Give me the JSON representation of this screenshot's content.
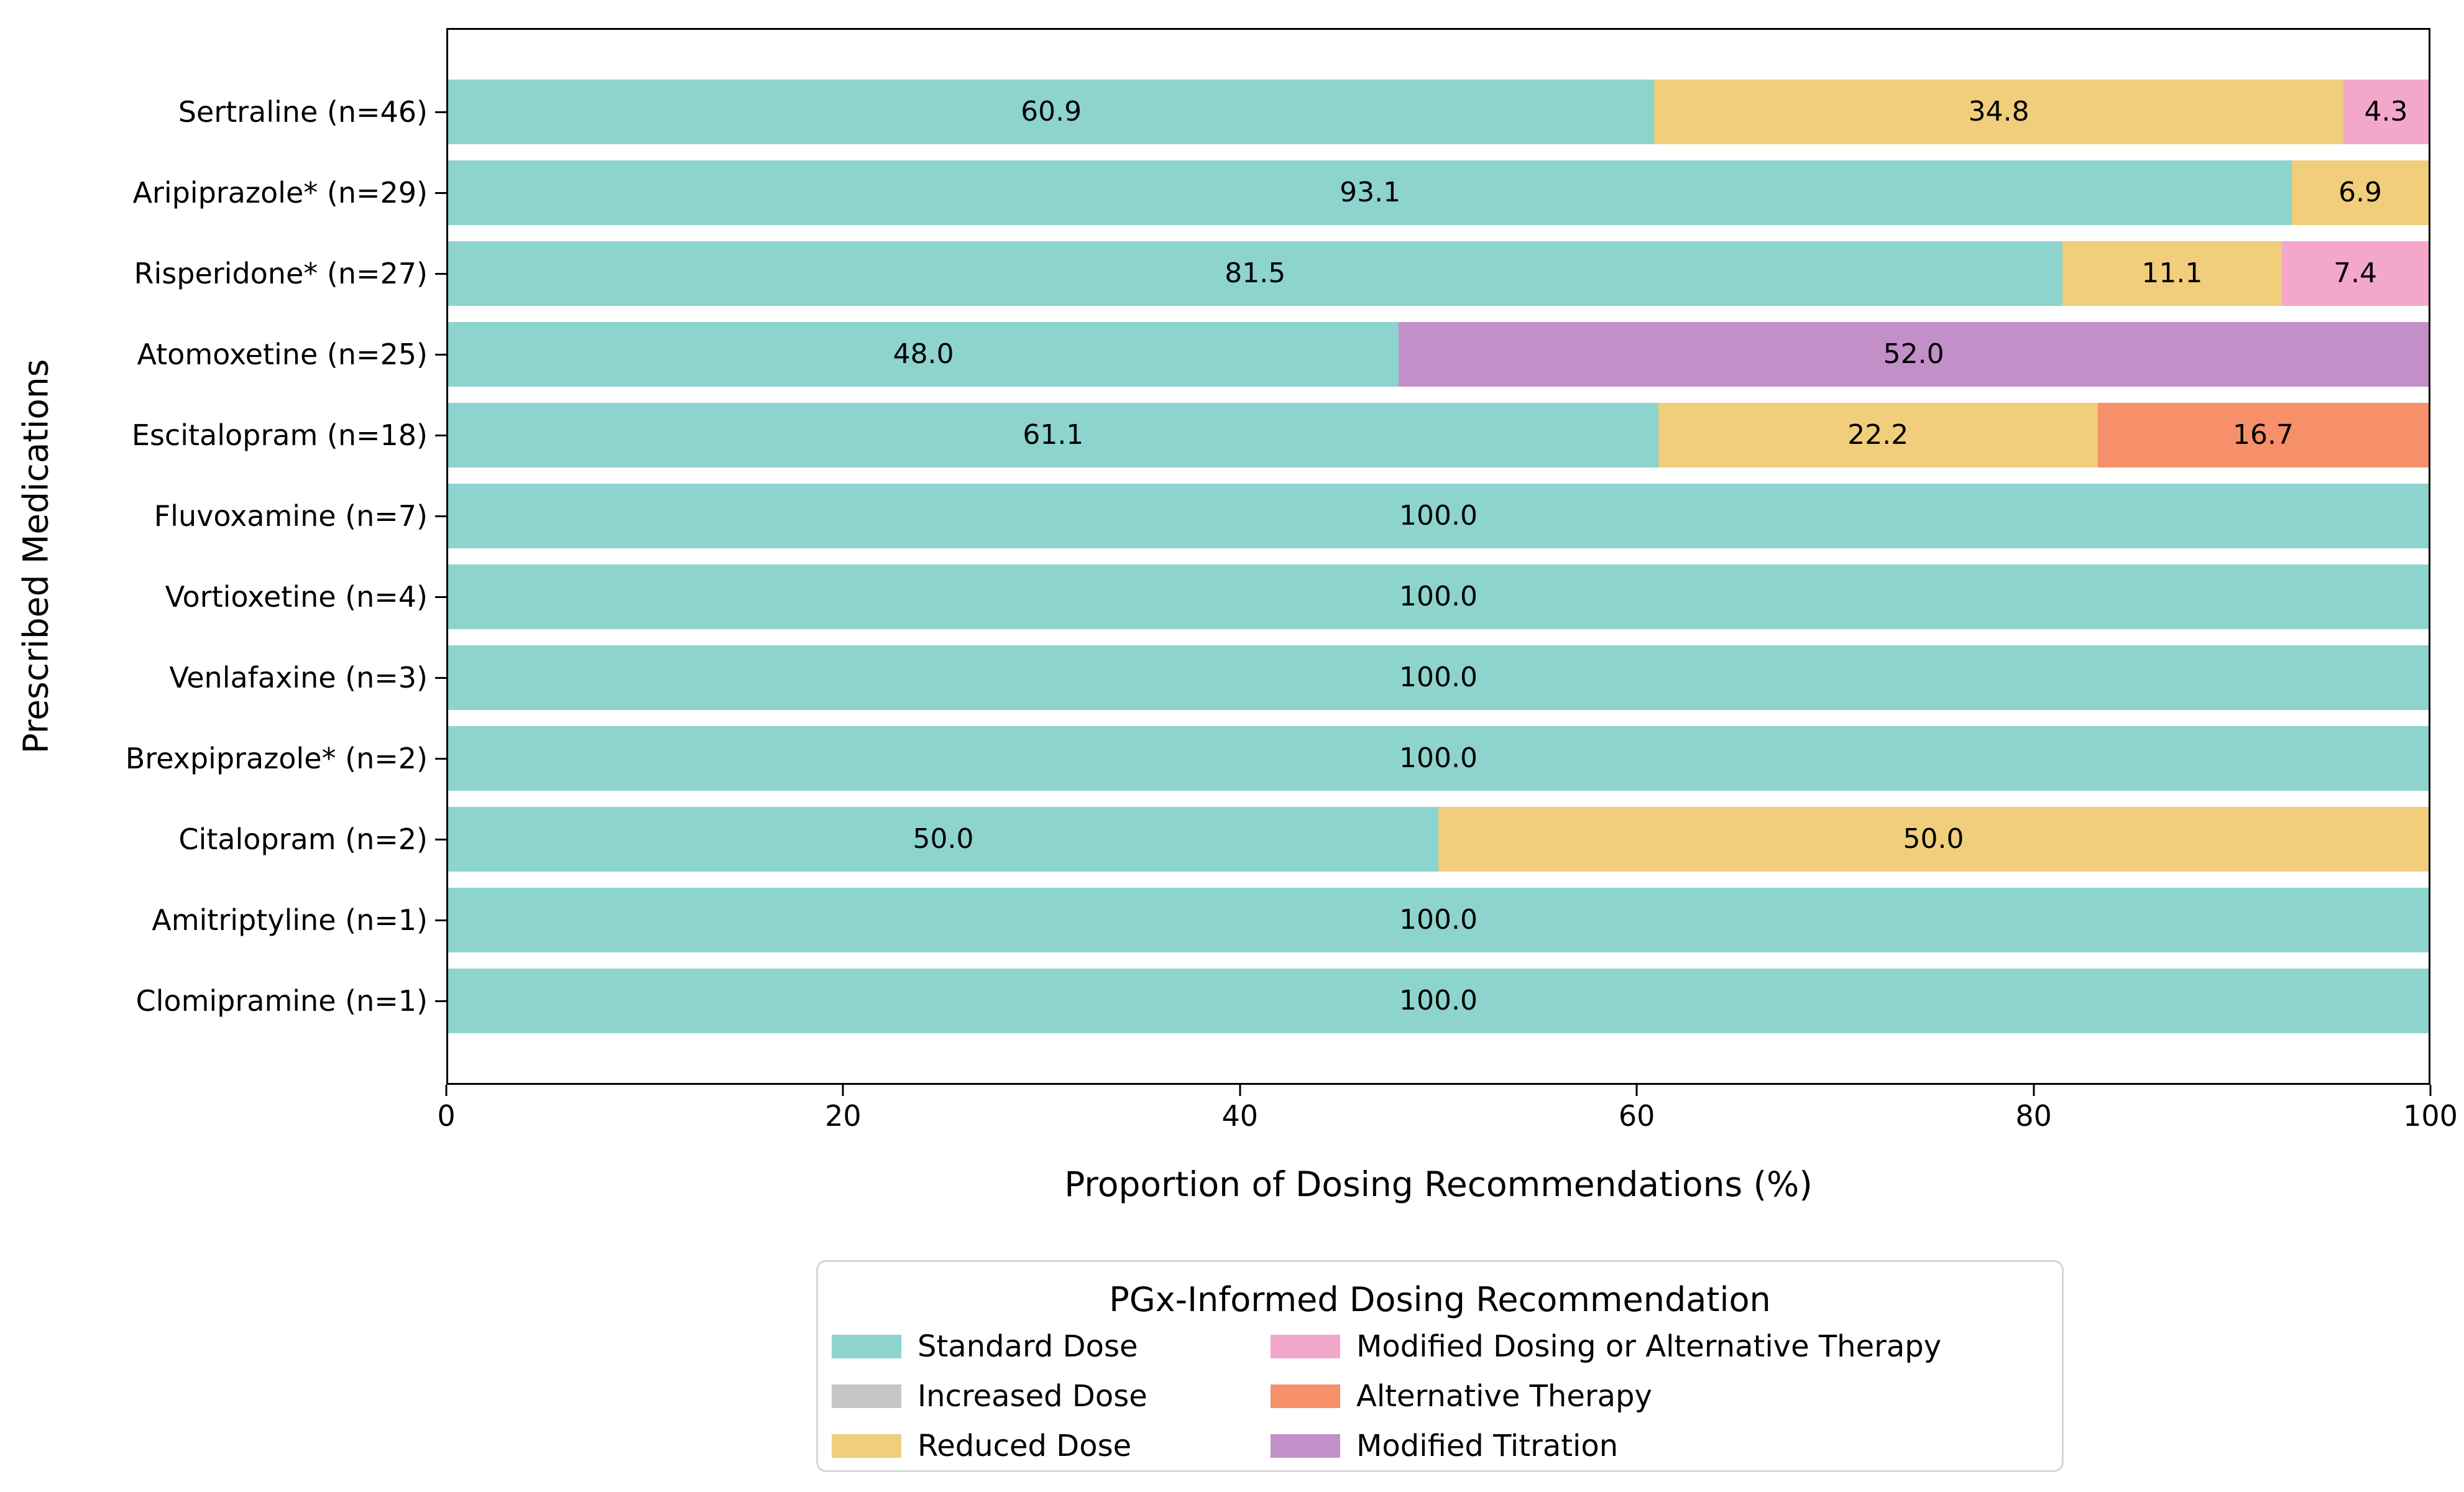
{
  "chart_data": {
    "type": "bar",
    "orientation": "horizontal",
    "stacked": true,
    "xlabel": "Proportion of Dosing Recommendations (%)",
    "ylabel": "Prescribed Medications",
    "xlim": [
      0,
      100
    ],
    "x_ticks": [
      0,
      20,
      40,
      60,
      80,
      100
    ],
    "grid": false,
    "bar_label_decimals": 1,
    "categories": [
      "Sertraline (n=46)",
      "Aripiprazole* (n=29)",
      "Risperidone* (n=27)",
      "Atomoxetine (n=25)",
      "Escitalopram (n=18)",
      "Fluvoxamine (n=7)",
      "Vortioxetine (n=4)",
      "Venlafaxine (n=3)",
      "Brexpiprazole* (n=2)",
      "Citalopram (n=2)",
      "Amitriptyline (n=1)",
      "Clomipramine (n=1)"
    ],
    "series": [
      {
        "name": "Standard Dose",
        "color": "#8DD3CE",
        "values": [
          60.9,
          93.1,
          81.5,
          48.0,
          61.1,
          100.0,
          100.0,
          100.0,
          100.0,
          50.0,
          100.0,
          100.0
        ]
      },
      {
        "name": "Increased Dose",
        "color": "#C6C6C6",
        "values": [
          0,
          0,
          0,
          0,
          0,
          0,
          0,
          0,
          0,
          0,
          0,
          0
        ]
      },
      {
        "name": "Reduced Dose",
        "color": "#F0CE7B",
        "values": [
          34.8,
          6.9,
          11.1,
          0,
          22.2,
          0,
          0,
          0,
          0,
          50.0,
          0,
          0
        ]
      },
      {
        "name": "Modified Dosing or Alternative Therapy",
        "color": "#F3A8CB",
        "values": [
          4.3,
          0,
          7.4,
          0,
          0,
          0,
          0,
          0,
          0,
          0,
          0,
          0
        ]
      },
      {
        "name": "Alternative Therapy",
        "color": "#F5906A",
        "values": [
          0,
          0,
          0,
          0,
          16.7,
          0,
          0,
          0,
          0,
          0,
          0,
          0
        ]
      },
      {
        "name": "Modified Titration",
        "color": "#C28FC8",
        "values": [
          0,
          0,
          0,
          52.0,
          0,
          0,
          0,
          0,
          0,
          0,
          0,
          0
        ]
      }
    ],
    "legend": {
      "title": "PGx-Informed Dosing Recommendation",
      "position": "lower center outside",
      "columns": 2
    }
  },
  "axis_colors": {
    "spine": "#000000",
    "text": "#000000"
  }
}
